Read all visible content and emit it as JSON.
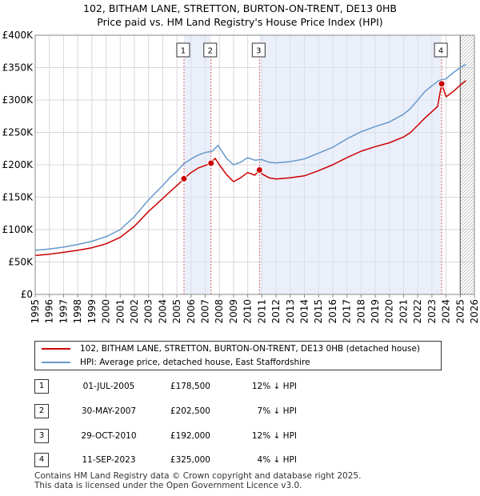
{
  "chart_data": {
    "type": "line",
    "title": "102, BITHAM LANE, STRETTON, BURTON-ON-TRENT, DE13 0HB",
    "subtitle": "Price paid vs. HM Land Registry's House Price Index (HPI)",
    "xlim": [
      1995,
      2026
    ],
    "ylim": [
      0,
      400000
    ],
    "x_ticks": [
      "1995",
      "1996",
      "1997",
      "1998",
      "1999",
      "2000",
      "2001",
      "2002",
      "2003",
      "2004",
      "2005",
      "2006",
      "2007",
      "2008",
      "2009",
      "2010",
      "2011",
      "2012",
      "2013",
      "2014",
      "2015",
      "2016",
      "2017",
      "2018",
      "2019",
      "2020",
      "2021",
      "2022",
      "2023",
      "2024",
      "2025",
      "2026"
    ],
    "y_ticks": [
      {
        "value": 0,
        "label": "£0"
      },
      {
        "value": 50000,
        "label": "£50K"
      },
      {
        "value": 100000,
        "label": "£100K"
      },
      {
        "value": 150000,
        "label": "£150K"
      },
      {
        "value": 200000,
        "label": "£200K"
      },
      {
        "value": 250000,
        "label": "£250K"
      },
      {
        "value": 300000,
        "label": "£300K"
      },
      {
        "value": 350000,
        "label": "£350K"
      },
      {
        "value": 400000,
        "label": "£400K"
      }
    ],
    "shaded_regions": [
      [
        2005.5,
        2007.41
      ],
      [
        2010.83,
        2023.69
      ]
    ],
    "future_hatch_start": 2025.0,
    "series": [
      {
        "name": "102, BITHAM LANE, STRETTON, BURTON-ON-TRENT, DE13 0HB (detached house)",
        "color": "#cc0000",
        "x": [
          1995,
          1996,
          1997,
          1998,
          1999,
          2000,
          2001,
          2002,
          2003,
          2004,
          2004.5,
          2005.0,
          2005.5,
          2006.0,
          2006.5,
          2007.0,
          2007.41,
          2007.7,
          2008.0,
          2008.5,
          2009.0,
          2009.5,
          2010.0,
          2010.5,
          2010.83,
          2011.0,
          2011.5,
          2012,
          2013,
          2014,
          2015,
          2016,
          2017,
          2018,
          2019,
          2020,
          2021,
          2021.5,
          2022,
          2022.5,
          2023.0,
          2023.4,
          2023.69,
          2024.0,
          2024.5,
          2025.0,
          2025.4
        ],
        "values": [
          60000,
          62000,
          65000,
          68000,
          72000,
          78000,
          88000,
          105000,
          128000,
          148000,
          158000,
          168000,
          178500,
          188000,
          195000,
          199000,
          202500,
          210000,
          200000,
          185000,
          174000,
          180000,
          188000,
          184000,
          192000,
          186000,
          180000,
          178000,
          180000,
          183000,
          191000,
          200000,
          211000,
          221000,
          228000,
          234000,
          243000,
          250000,
          261000,
          272000,
          282000,
          290000,
          325000,
          305000,
          313000,
          323000,
          330000
        ]
      },
      {
        "name": "HPI: Average price, detached house, East Staffordshire",
        "color": "#6699cc",
        "x": [
          1995,
          1996,
          1997,
          1998,
          1999,
          2000,
          2001,
          2002,
          2003,
          2004,
          2004.5,
          2005.0,
          2005.5,
          2006.0,
          2006.5,
          2007.0,
          2007.5,
          2007.9,
          2008.5,
          2009.0,
          2009.5,
          2010.0,
          2010.5,
          2011.0,
          2011.5,
          2012,
          2013,
          2014,
          2015,
          2016,
          2017,
          2018,
          2019,
          2020,
          2021,
          2021.5,
          2022,
          2022.5,
          2023.0,
          2023.5,
          2024.0,
          2024.5,
          2025.0,
          2025.4
        ],
        "values": [
          68000,
          70000,
          73000,
          77000,
          82000,
          89000,
          100000,
          120000,
          146000,
          168000,
          180000,
          190000,
          202000,
          209000,
          215000,
          219000,
          221000,
          230000,
          210000,
          200000,
          204000,
          211000,
          207000,
          208000,
          204000,
          203000,
          205000,
          209000,
          218000,
          227000,
          240000,
          251000,
          259000,
          266000,
          278000,
          287000,
          300000,
          313000,
          322000,
          330000,
          333000,
          342000,
          350000,
          355000
        ]
      }
    ],
    "sales": [
      {
        "label": "1",
        "x": 2005.5,
        "price": 178500
      },
      {
        "label": "2",
        "x": 2007.41,
        "price": 202500
      },
      {
        "label": "3",
        "x": 2010.83,
        "price": 192000
      },
      {
        "label": "4",
        "x": 2023.69,
        "price": 325000
      }
    ]
  },
  "legend": {
    "property": "102, BITHAM LANE, STRETTON, BURTON-ON-TRENT, DE13 0HB (detached house)",
    "hpi": "HPI: Average price, detached house, East Staffordshire"
  },
  "transactions": [
    {
      "num": "1",
      "date": "01-JUL-2005",
      "price": "£178,500",
      "hpi": "12% ↓ HPI"
    },
    {
      "num": "2",
      "date": "30-MAY-2007",
      "price": "£202,500",
      "hpi": "7% ↓ HPI"
    },
    {
      "num": "3",
      "date": "29-OCT-2010",
      "price": "£192,000",
      "hpi": "12% ↓ HPI"
    },
    {
      "num": "4",
      "date": "11-SEP-2023",
      "price": "£325,000",
      "hpi": "4% ↓ HPI"
    }
  ],
  "footer": {
    "line1": "Contains HM Land Registry data © Crown copyright and database right 2025.",
    "line2": "This data is licensed under the Open Government Licence v3.0."
  }
}
